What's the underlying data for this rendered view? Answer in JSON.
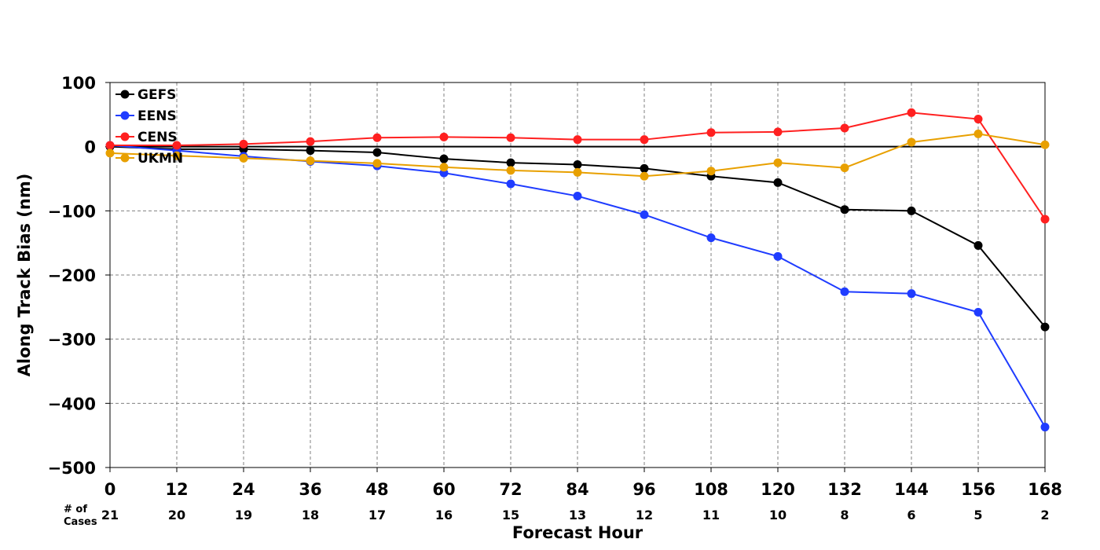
{
  "chart_data": {
    "type": "line",
    "title": "",
    "xlabel": "Forecast Hour",
    "ylabel": "Along Track Bias (nm)",
    "xlim": [
      0,
      168
    ],
    "ylim": [
      -500,
      100
    ],
    "x": [
      0,
      12,
      24,
      36,
      48,
      60,
      72,
      84,
      96,
      108,
      120,
      132,
      144,
      156,
      168
    ],
    "x_ticks": [
      "0",
      "12",
      "24",
      "36",
      "48",
      "60",
      "72",
      "84",
      "96",
      "108",
      "120",
      "132",
      "144",
      "156",
      "168"
    ],
    "y_ticks": [
      100,
      0,
      -100,
      -200,
      -300,
      -400,
      -500
    ],
    "y_tick_labels": [
      "100",
      "0",
      "−100",
      "−200",
      "−300",
      "−400",
      "−500"
    ],
    "grid": true,
    "legend_position": "top-left",
    "cases_label_line1": "# of",
    "cases_label_line2": "Cases",
    "cases": [
      "21",
      "20",
      "19",
      "18",
      "17",
      "16",
      "15",
      "13",
      "12",
      "11",
      "10",
      "8",
      "6",
      "5",
      "2"
    ],
    "series": [
      {
        "name": "GEFS",
        "color": "#000000",
        "values": [
          0,
          -4,
          -4,
          -6,
          -9,
          -19,
          -25,
          -28,
          -34,
          -46,
          -56,
          -98,
          -100,
          -154,
          -281
        ]
      },
      {
        "name": "EENS",
        "color": "#1f3cff",
        "values": [
          2,
          -6,
          -15,
          -23,
          -30,
          -41,
          -58,
          -77,
          -106,
          -142,
          -171,
          -226,
          -229,
          -258,
          -437
        ]
      },
      {
        "name": "CENS",
        "color": "#ff2020",
        "values": [
          2,
          2,
          4,
          8,
          14,
          15,
          14,
          11,
          11,
          22,
          23,
          29,
          53,
          43,
          -113
        ]
      },
      {
        "name": "UKMN",
        "color": "#e8a000",
        "values": [
          -10,
          -14,
          -18,
          -22,
          -26,
          -32,
          -37,
          -40,
          -46,
          -38,
          -25,
          -33,
          7,
          20,
          3
        ]
      }
    ]
  }
}
